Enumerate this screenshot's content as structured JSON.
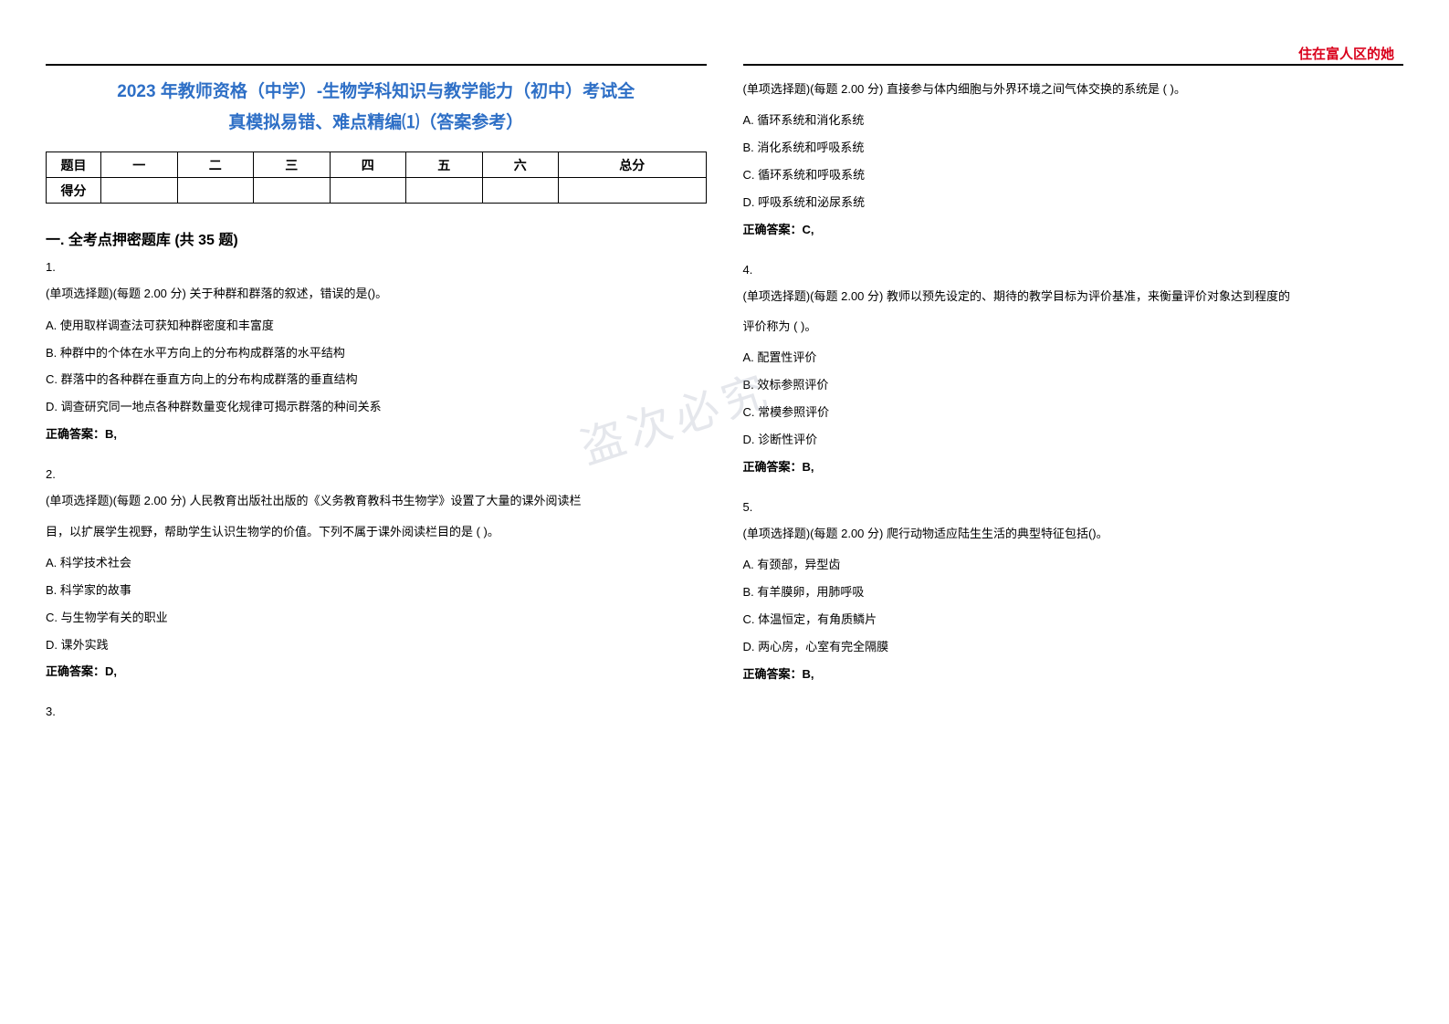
{
  "header_right": "住在富人区的她",
  "exam_title_line1": "2023 年教师资格（中学）-生物学科知识与教学能力（初中）考试全",
  "exam_title_line2": "真模拟易错、难点精编⑴（答案参考）",
  "score_table": {
    "row1": [
      "题目",
      "一",
      "二",
      "三",
      "四",
      "五",
      "六",
      "总分"
    ],
    "row2_label": "得分"
  },
  "section1_title": "一. 全考点押密题库 (共 35 题)",
  "watermark": "盗次必究",
  "questions": [
    {
      "num": "1.",
      "stem": "(单项选择题)(每题 2.00 分) 关于种群和群落的叙述，错误的是()。",
      "opts": [
        "A. 使用取样调查法可获知种群密度和丰富度",
        "B. 种群中的个体在水平方向上的分布构成群落的水平结构",
        "C. 群落中的各种群在垂直方向上的分布构成群落的垂直结构",
        "D. 调查研究同一地点各种群数量变化规律可揭示群落的种间关系"
      ],
      "answer": "正确答案：B,"
    },
    {
      "num": "2.",
      "stem": "(单项选择题)(每题 2.00 分) 人民教育出版社出版的《义务教育教科书生物学》设置了大量的课外阅读栏",
      "stem2": "目，以扩展学生视野，帮助学生认识生物学的价值。下列不属于课外阅读栏目的是 ( )。",
      "opts": [
        "A. 科学技术社会",
        "B. 科学家的故事",
        "C. 与生物学有关的职业",
        "D. 课外实践"
      ],
      "answer": "正确答案：D,"
    },
    {
      "num": "3.",
      "stem": "(单项选择题)(每题 2.00 分) 直接参与体内细胞与外界环境之间气体交换的系统是 ( )。",
      "opts": [
        "A. 循环系统和消化系统",
        "B. 消化系统和呼吸系统",
        "C. 循环系统和呼吸系统",
        "D. 呼吸系统和泌尿系统"
      ],
      "answer": "正确答案：C,"
    },
    {
      "num": "4.",
      "stem": "(单项选择题)(每题 2.00 分) 教师以预先设定的、期待的教学目标为评价基准，来衡量评价对象达到程度的",
      "stem2": "评价称为 ( )。",
      "opts": [
        "A. 配置性评价",
        "B. 效标参照评价",
        "C. 常模参照评价",
        "D. 诊断性评价"
      ],
      "answer": "正确答案：B,"
    },
    {
      "num": "5.",
      "stem": "(单项选择题)(每题 2.00 分) 爬行动物适应陆生生活的典型特征包括()。",
      "opts": [
        "A. 有颈部，异型齿",
        "B. 有羊膜卵，用肺呼吸",
        "C. 体温恒定，有角质鳞片",
        "D. 两心房，心室有完全隔膜"
      ],
      "answer": "正确答案：B,"
    }
  ]
}
